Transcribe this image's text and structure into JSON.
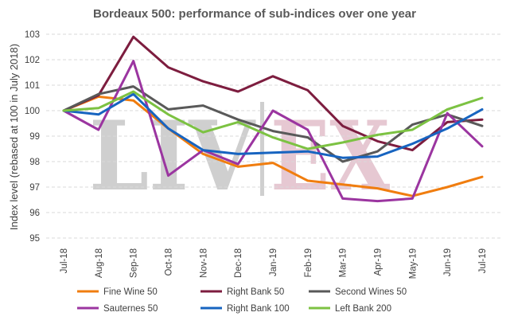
{
  "chart_data": {
    "type": "line",
    "title": "Bordeaux 500: performance of sub-indices over one year",
    "xlabel": "",
    "ylabel": "Index level (rebased at 100 in July 2018)",
    "ylim": [
      95,
      103
    ],
    "yticks": [
      95,
      96,
      97,
      98,
      99,
      100,
      101,
      102,
      103
    ],
    "grid": true,
    "legend_position": "bottom",
    "categories": [
      "Jul-18",
      "Aug-18",
      "Sep-18",
      "Oct-18",
      "Nov-18",
      "Dec-18",
      "Jan-19",
      "Feb-19",
      "Mar-19",
      "Apr-19",
      "May-19",
      "Jun-19",
      "Jul-19"
    ],
    "watermark": {
      "left": "LIV",
      "right": "EX"
    },
    "series": [
      {
        "name": "Fine Wine 50",
        "color": "#f07d0f",
        "values": [
          100,
          100.55,
          100.4,
          99.3,
          98.3,
          97.8,
          97.95,
          97.25,
          97.1,
          96.95,
          96.65,
          97.0,
          97.4
        ]
      },
      {
        "name": "Right Bank 50",
        "color": "#7d1d3f",
        "values": [
          100,
          100.6,
          102.9,
          101.7,
          101.15,
          100.75,
          101.35,
          100.8,
          99.4,
          98.8,
          98.45,
          99.55,
          99.65
        ]
      },
      {
        "name": "Second Wines 50",
        "color": "#595959",
        "values": [
          100,
          100.65,
          100.95,
          100.05,
          100.2,
          99.65,
          99.2,
          98.95,
          98.0,
          98.4,
          99.45,
          99.85,
          99.4
        ]
      },
      {
        "name": "Sauternes 50",
        "color": "#9b35a0",
        "values": [
          100,
          99.25,
          101.95,
          97.45,
          98.45,
          97.9,
          100.0,
          99.25,
          96.55,
          96.45,
          96.55,
          99.9,
          98.6
        ]
      },
      {
        "name": "Right Bank 100",
        "color": "#1764c0",
        "values": [
          100,
          99.85,
          100.65,
          99.3,
          98.45,
          98.3,
          98.35,
          98.4,
          98.15,
          98.2,
          98.7,
          99.3,
          100.05
        ]
      },
      {
        "name": "Left Bank 200",
        "color": "#7cc242",
        "values": [
          100,
          100.1,
          100.75,
          99.85,
          99.15,
          99.55,
          98.95,
          98.5,
          98.75,
          99.05,
          99.25,
          100.05,
          100.5
        ]
      }
    ]
  }
}
